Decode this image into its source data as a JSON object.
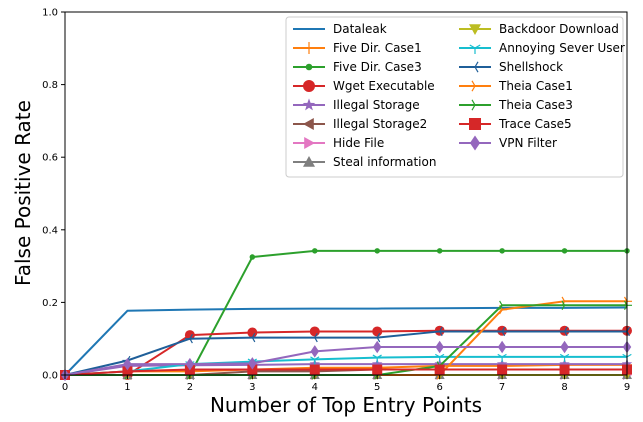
{
  "chart_data": {
    "type": "line",
    "xlabel": "Number of Top Entry Points",
    "ylabel": "False Positive Rate",
    "xlim": [
      0,
      9
    ],
    "ylim": [
      0,
      1.0
    ],
    "x": [
      0,
      1,
      2,
      3,
      4,
      5,
      6,
      7,
      8,
      9
    ],
    "x_tick_labels": [
      "0",
      "1",
      "2",
      "3",
      "4",
      "5",
      "6",
      "7",
      "8",
      "9"
    ],
    "y_ticks": [
      0.0,
      0.2,
      0.4,
      0.6,
      0.8,
      1.0
    ],
    "y_tick_labels": [
      "0.0",
      "0.2",
      "0.4",
      "0.6",
      "0.8",
      "1.0"
    ],
    "grid": false,
    "legend_position": "top-right",
    "legend_columns": 2,
    "series": [
      {
        "name": "Dataleak",
        "color": "#1f77b4",
        "marker": "none",
        "values": [
          0,
          0.177,
          0.18,
          0.182,
          0.183,
          0.183,
          0.184,
          0.185,
          0.185,
          0.186
        ]
      },
      {
        "name": "Five Dir. Case1",
        "color": "#ff7f0e",
        "marker": "plus",
        "values": [
          0,
          0.01,
          0.01,
          0.015,
          0.02,
          0.02,
          0.025,
          0.025,
          0.028,
          0.028
        ]
      },
      {
        "name": "Five Dir. Case3",
        "color": "#2ca02c",
        "marker": "dot",
        "values": [
          0,
          0,
          0,
          0.325,
          0.342,
          0.342,
          0.342,
          0.342,
          0.342,
          0.342
        ]
      },
      {
        "name": "Wget Executable",
        "color": "#d62728",
        "marker": "circle",
        "values": [
          0,
          0,
          0.11,
          0.117,
          0.12,
          0.12,
          0.122,
          0.122,
          0.122,
          0.122
        ]
      },
      {
        "name": "Illegal Storage",
        "color": "#9467bd",
        "marker": "star",
        "values": [
          0,
          0.025,
          0.027,
          0.028,
          0.03,
          0.03,
          0.03,
          0.03,
          0.03,
          0.03
        ]
      },
      {
        "name": "Illegal Storage2",
        "color": "#8c564b",
        "marker": "triangle-left",
        "values": [
          0,
          0,
          0,
          0.01,
          0.01,
          0.015,
          0.015,
          0.015,
          0.015,
          0.015
        ]
      },
      {
        "name": "Hide File",
        "color": "#e377c2",
        "marker": "triangle-right",
        "values": [
          0,
          0,
          0,
          0,
          0,
          0,
          0,
          0,
          0,
          0
        ]
      },
      {
        "name": "Steal information",
        "color": "#7f7f7f",
        "marker": "triangle-up",
        "values": [
          0,
          0,
          0,
          0,
          0,
          0,
          0,
          0,
          0,
          0
        ]
      },
      {
        "name": "Backdoor Download",
        "color": "#bcbd22",
        "marker": "triangle-down",
        "values": [
          0,
          0,
          0,
          0,
          0,
          0,
          0,
          0,
          0,
          0
        ]
      },
      {
        "name": "Annoying Sever User",
        "color": "#17becf",
        "marker": "tri-down",
        "values": [
          0,
          0.01,
          0.03,
          0.037,
          0.043,
          0.048,
          0.05,
          0.05,
          0.05,
          0.05
        ]
      },
      {
        "name": "Shellshock",
        "color": "#1f5f99",
        "marker": "tri-left",
        "values": [
          0,
          0.04,
          0.1,
          0.103,
          0.103,
          0.103,
          0.12,
          0.12,
          0.12,
          0.12
        ]
      },
      {
        "name": "Theia Case1",
        "color": "#ff7f0e",
        "marker": "tri-right",
        "values": [
          0,
          0,
          0,
          0,
          0,
          0,
          0,
          0.18,
          0.203,
          0.203
        ]
      },
      {
        "name": "Theia Case3",
        "color": "#2ca02c",
        "marker": "tri-right",
        "values": [
          0,
          0,
          0,
          0,
          0,
          0,
          0.025,
          0.192,
          0.192,
          0.192
        ]
      },
      {
        "name": "Trace Case5",
        "color": "#d62728",
        "marker": "square",
        "values": [
          0,
          0.01,
          0.015,
          0.015,
          0.015,
          0.015,
          0.015,
          0.015,
          0.015,
          0.015
        ]
      },
      {
        "name": "VPN Filter",
        "color": "#9467bd",
        "marker": "diamond",
        "values": [
          0,
          0.03,
          0.03,
          0.032,
          0.065,
          0.077,
          0.077,
          0.077,
          0.077,
          0.077
        ]
      }
    ]
  }
}
